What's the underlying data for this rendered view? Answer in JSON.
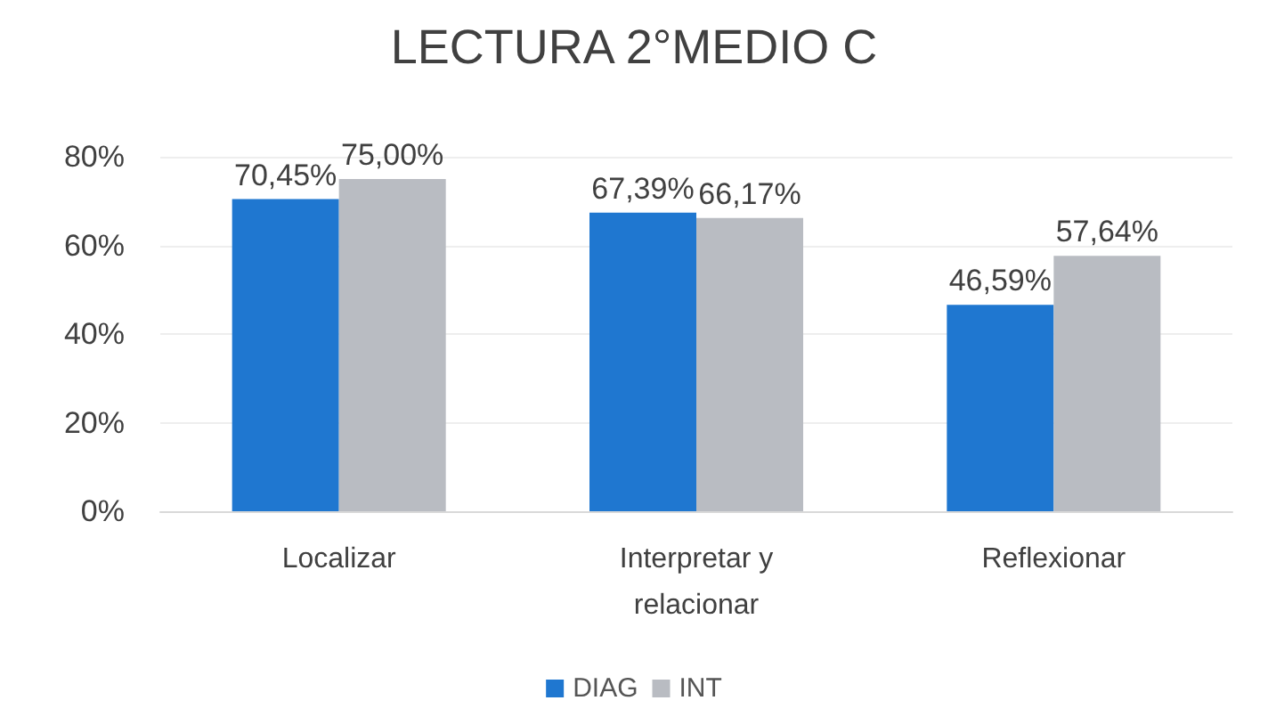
{
  "chart_data": {
    "type": "bar",
    "title": "LECTURA 2°MEDIO C",
    "categories": [
      "Localizar",
      "Interpretar y\nrelacionar",
      "Reflexionar"
    ],
    "series": [
      {
        "name": "DIAG",
        "color": "#1f77d0",
        "values": [
          70.45,
          67.39,
          46.59
        ],
        "value_labels": [
          "70,45%",
          "67,39%",
          "46,59%"
        ]
      },
      {
        "name": "INT",
        "color": "#b9bcc2",
        "values": [
          75.0,
          66.17,
          57.64
        ],
        "value_labels": [
          "75,00%",
          "66,17%",
          "57,64%"
        ]
      }
    ],
    "ylim": [
      0,
      80
    ],
    "yticks": [
      {
        "value": 0,
        "label": "0%"
      },
      {
        "value": 20,
        "label": "20%"
      },
      {
        "value": 40,
        "label": "40%"
      },
      {
        "value": 60,
        "label": "60%"
      },
      {
        "value": 80,
        "label": "80%"
      }
    ],
    "grid": "y",
    "legend": "bottom"
  }
}
